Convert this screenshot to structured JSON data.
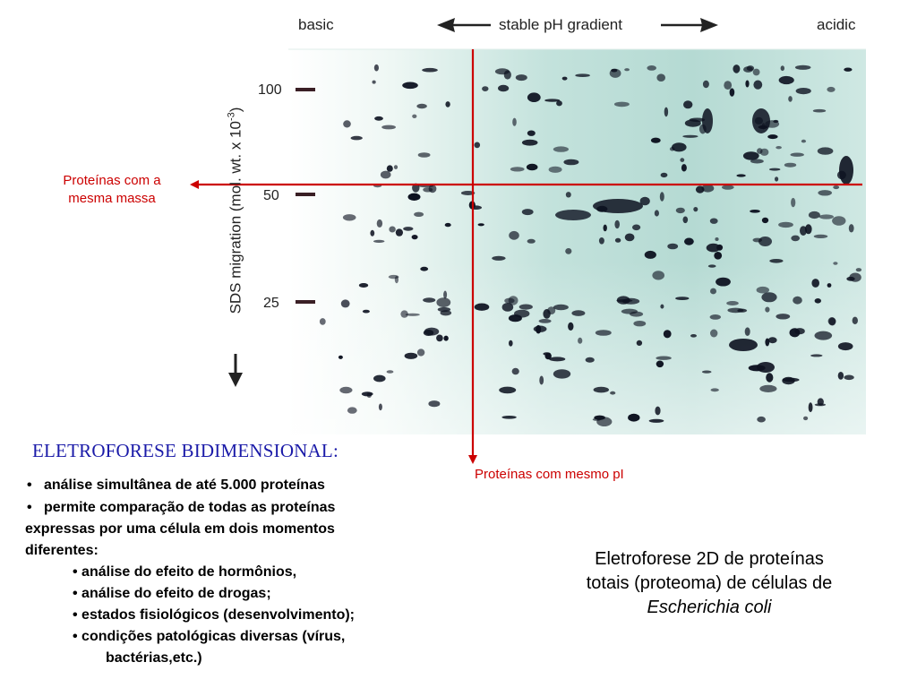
{
  "gel": {
    "label_basic": "basic",
    "label_gradient": "stable pH gradient",
    "label_acidic": "acidic",
    "ylabel": "SDS migration (mol. wt. x 10",
    "ylabel_sup": "-3",
    "ylabel_close": ")",
    "markers": [
      "100",
      "50",
      "25"
    ],
    "colors": {
      "gel": "#bfe3dd",
      "spot": "#0d1220",
      "guide": "#cc0000"
    }
  },
  "annotations": {
    "same_mass": "Proteínas com a mesma massa",
    "same_mass_line1": "Proteínas com a",
    "same_mass_line2": "mesma massa",
    "same_pi": "Proteínas com mesmo pI"
  },
  "text": {
    "heading": "ELETROFORESE BIDIMENSIONAL:",
    "bullet1": "análise simultânea de até 5.000 proteínas",
    "bullet2_line1": "permite comparação de todas as proteínas",
    "bullet2_line2": "expressas por uma célula em dois momentos",
    "bullet2_line3": "diferentes:",
    "sub1": "• análise do efeito de hormônios,",
    "sub2": "• análise do efeito de drogas;",
    "sub3": "• estados fisiológicos (desenvolvimento);",
    "sub4_line1": "• condições patológicas diversas (vírus,",
    "sub4_line2": "bactérias,etc.)",
    "bullet_glyph": "•"
  },
  "caption": {
    "line1": "Eletroforese 2D de proteínas",
    "line2": "totais (proteoma) de células de",
    "line3": "Escherichia coli"
  }
}
